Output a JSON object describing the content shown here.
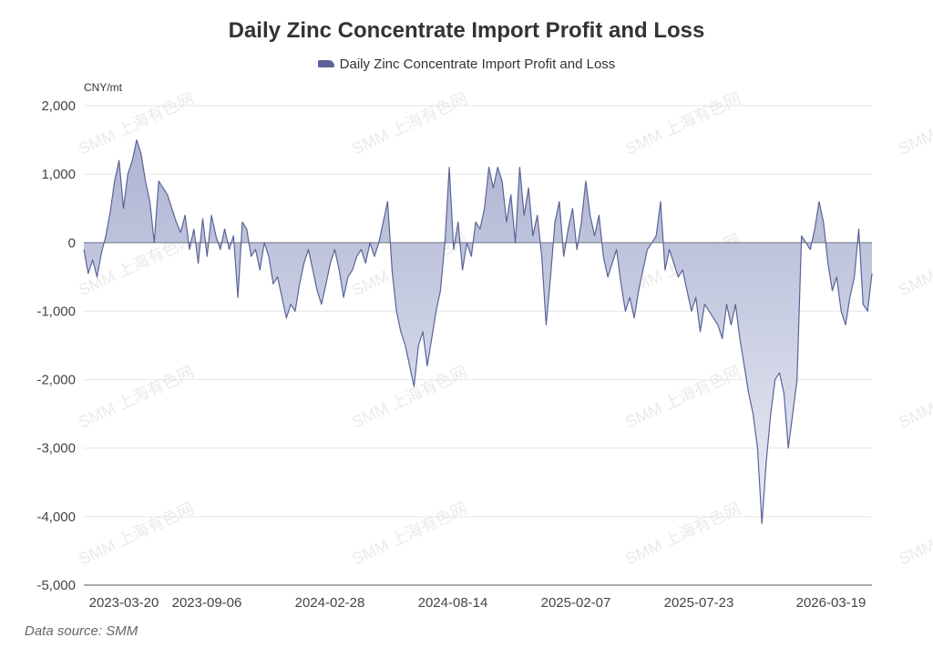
{
  "title": "Daily Zinc Concentrate Import Profit and Loss",
  "legend": {
    "label": "Daily Zinc Concentrate Import Profit and Loss"
  },
  "y_unit": "CNY/mt",
  "source": "Data source:  SMM",
  "watermark": "SMM 上海有色网",
  "colors": {
    "line": "#5a6398",
    "fill_top": "#a9b0d0",
    "fill_bottom": "#e9ebf4",
    "grid": "#e6e6e6",
    "zero": "#6f7580"
  },
  "chart_data": {
    "type": "area",
    "title": "Daily Zinc Concentrate Import Profit and Loss",
    "ylabel": "CNY/mt",
    "ylim": [
      -5000,
      2000
    ],
    "yticks": [
      2000,
      1000,
      0,
      -1000,
      -2000,
      -3000,
      -4000,
      -5000
    ],
    "ytick_labels": [
      "2,000",
      "1,000",
      "0",
      "-1,000",
      "-2,000",
      "-3,000",
      "-4,000",
      "-5,000"
    ],
    "xtick_labels": [
      "2023-03-20",
      "2023-09-06",
      "2024-02-28",
      "2024-08-14",
      "2025-02-07",
      "2025-07-23",
      "2026-03-19"
    ],
    "grid": true,
    "legend_position": "top-center",
    "series": [
      {
        "name": "Daily Zinc Concentrate Import Profit and Loss",
        "points": [
          [
            "2022-12-22",
            -100
          ],
          [
            "2022-12-29",
            -450
          ],
          [
            "2023-01-05",
            -250
          ],
          [
            "2023-01-12",
            -500
          ],
          [
            "2023-01-19",
            -150
          ],
          [
            "2023-01-26",
            100
          ],
          [
            "2023-02-02",
            450
          ],
          [
            "2023-02-09",
            900
          ],
          [
            "2023-02-16",
            1200
          ],
          [
            "2023-02-23",
            500
          ],
          [
            "2023-03-02",
            1000
          ],
          [
            "2023-03-09",
            1200
          ],
          [
            "2023-03-16",
            1500
          ],
          [
            "2023-03-23",
            1300
          ],
          [
            "2023-03-30",
            900
          ],
          [
            "2023-04-06",
            600
          ],
          [
            "2023-04-13",
            0
          ],
          [
            "2023-04-20",
            900
          ],
          [
            "2023-04-27",
            800
          ],
          [
            "2023-05-04",
            700
          ],
          [
            "2023-05-11",
            500
          ],
          [
            "2023-05-18",
            300
          ],
          [
            "2023-05-25",
            150
          ],
          [
            "2023-06-01",
            400
          ],
          [
            "2023-06-08",
            -100
          ],
          [
            "2023-06-15",
            200
          ],
          [
            "2023-06-22",
            -300
          ],
          [
            "2023-06-29",
            350
          ],
          [
            "2023-07-06",
            -200
          ],
          [
            "2023-07-13",
            400
          ],
          [
            "2023-07-20",
            100
          ],
          [
            "2023-07-27",
            -100
          ],
          [
            "2023-08-03",
            200
          ],
          [
            "2023-08-10",
            -100
          ],
          [
            "2023-08-17",
            100
          ],
          [
            "2023-08-24",
            -800
          ],
          [
            "2023-08-31",
            300
          ],
          [
            "2023-09-07",
            200
          ],
          [
            "2023-09-14",
            -200
          ],
          [
            "2023-09-21",
            -100
          ],
          [
            "2023-09-28",
            -400
          ],
          [
            "2023-10-05",
            0
          ],
          [
            "2023-10-12",
            -200
          ],
          [
            "2023-10-19",
            -600
          ],
          [
            "2023-10-26",
            -500
          ],
          [
            "2023-11-02",
            -800
          ],
          [
            "2023-11-09",
            -1100
          ],
          [
            "2023-11-16",
            -900
          ],
          [
            "2023-11-23",
            -1000
          ],
          [
            "2023-11-30",
            -600
          ],
          [
            "2023-12-07",
            -300
          ],
          [
            "2023-12-14",
            -100
          ],
          [
            "2023-12-21",
            -400
          ],
          [
            "2023-12-28",
            -700
          ],
          [
            "2024-01-04",
            -900
          ],
          [
            "2024-01-11",
            -600
          ],
          [
            "2024-01-18",
            -300
          ],
          [
            "2024-01-25",
            -100
          ],
          [
            "2024-02-01",
            -400
          ],
          [
            "2024-02-08",
            -800
          ],
          [
            "2024-02-15",
            -500
          ],
          [
            "2024-02-22",
            -400
          ],
          [
            "2024-02-29",
            -200
          ],
          [
            "2024-03-07",
            -100
          ],
          [
            "2024-03-14",
            -300
          ],
          [
            "2024-03-21",
            0
          ],
          [
            "2024-03-28",
            -200
          ],
          [
            "2024-04-04",
            0
          ],
          [
            "2024-04-11",
            300
          ],
          [
            "2024-04-18",
            600
          ],
          [
            "2024-04-25",
            -400
          ],
          [
            "2024-05-02",
            -1000
          ],
          [
            "2024-05-09",
            -1300
          ],
          [
            "2024-05-16",
            -1500
          ],
          [
            "2024-05-23",
            -1800
          ],
          [
            "2024-05-30",
            -2100
          ],
          [
            "2024-06-06",
            -1500
          ],
          [
            "2024-06-13",
            -1300
          ],
          [
            "2024-06-20",
            -1800
          ],
          [
            "2024-06-27",
            -1400
          ],
          [
            "2024-07-04",
            -1000
          ],
          [
            "2024-07-11",
            -700
          ],
          [
            "2024-07-18",
            0
          ],
          [
            "2024-07-25",
            1100
          ],
          [
            "2024-08-01",
            -100
          ],
          [
            "2024-08-08",
            300
          ],
          [
            "2024-08-15",
            -400
          ],
          [
            "2024-08-22",
            0
          ],
          [
            "2024-08-29",
            -200
          ],
          [
            "2024-09-05",
            300
          ],
          [
            "2024-09-12",
            200
          ],
          [
            "2024-09-19",
            500
          ],
          [
            "2024-09-26",
            1100
          ],
          [
            "2024-10-03",
            800
          ],
          [
            "2024-10-10",
            1100
          ],
          [
            "2024-10-17",
            900
          ],
          [
            "2024-10-24",
            300
          ],
          [
            "2024-10-31",
            700
          ],
          [
            "2024-11-07",
            0
          ],
          [
            "2024-11-14",
            1100
          ],
          [
            "2024-11-21",
            400
          ],
          [
            "2024-11-28",
            800
          ],
          [
            "2024-12-05",
            100
          ],
          [
            "2024-12-12",
            400
          ],
          [
            "2024-12-19",
            -200
          ],
          [
            "2024-12-26",
            -1200
          ],
          [
            "2025-01-02",
            -500
          ],
          [
            "2025-01-09",
            300
          ],
          [
            "2025-01-16",
            600
          ],
          [
            "2025-01-23",
            -200
          ],
          [
            "2025-01-30",
            200
          ],
          [
            "2025-02-06",
            500
          ],
          [
            "2025-02-13",
            -100
          ],
          [
            "2025-02-20",
            300
          ],
          [
            "2025-02-27",
            900
          ],
          [
            "2025-03-06",
            400
          ],
          [
            "2025-03-13",
            100
          ],
          [
            "2025-03-20",
            400
          ],
          [
            "2025-03-27",
            -200
          ],
          [
            "2025-04-03",
            -500
          ],
          [
            "2025-04-10",
            -300
          ],
          [
            "2025-04-17",
            -100
          ],
          [
            "2025-04-24",
            -600
          ],
          [
            "2025-05-01",
            -1000
          ],
          [
            "2025-05-08",
            -800
          ],
          [
            "2025-05-15",
            -1100
          ],
          [
            "2025-05-22",
            -700
          ],
          [
            "2025-05-29",
            -400
          ],
          [
            "2025-06-05",
            -100
          ],
          [
            "2025-06-12",
            0
          ],
          [
            "2025-06-19",
            100
          ],
          [
            "2025-06-26",
            600
          ],
          [
            "2025-07-03",
            -400
          ],
          [
            "2025-07-10",
            -100
          ],
          [
            "2025-07-17",
            -300
          ],
          [
            "2025-07-24",
            -500
          ],
          [
            "2025-07-31",
            -400
          ],
          [
            "2025-08-07",
            -700
          ],
          [
            "2025-08-14",
            -1000
          ],
          [
            "2025-08-21",
            -800
          ],
          [
            "2025-08-28",
            -1300
          ],
          [
            "2025-09-04",
            -900
          ],
          [
            "2025-09-11",
            -1000
          ],
          [
            "2025-09-18",
            -1100
          ],
          [
            "2025-09-25",
            -1200
          ],
          [
            "2025-10-02",
            -1400
          ],
          [
            "2025-10-09",
            -900
          ],
          [
            "2025-10-16",
            -1200
          ],
          [
            "2025-10-23",
            -900
          ],
          [
            "2025-10-30",
            -1400
          ],
          [
            "2025-11-06",
            -1800
          ],
          [
            "2025-11-13",
            -2200
          ],
          [
            "2025-11-20",
            -2500
          ],
          [
            "2025-11-27",
            -3000
          ],
          [
            "2025-12-04",
            -4100
          ],
          [
            "2025-12-11",
            -3200
          ],
          [
            "2025-12-18",
            -2500
          ],
          [
            "2025-12-25",
            -2000
          ],
          [
            "2026-01-01",
            -1900
          ],
          [
            "2026-01-08",
            -2200
          ],
          [
            "2026-01-15",
            -3000
          ],
          [
            "2026-01-22",
            -2500
          ],
          [
            "2026-01-29",
            -2000
          ],
          [
            "2026-02-05",
            100
          ],
          [
            "2026-02-12",
            0
          ],
          [
            "2026-02-19",
            -100
          ],
          [
            "2026-02-26",
            200
          ],
          [
            "2026-03-05",
            600
          ],
          [
            "2026-03-12",
            300
          ],
          [
            "2026-03-19",
            -300
          ],
          [
            "2026-03-26",
            -700
          ],
          [
            "2026-04-02",
            -500
          ],
          [
            "2026-04-09",
            -1000
          ],
          [
            "2026-04-16",
            -1200
          ],
          [
            "2026-04-23",
            -800
          ],
          [
            "2026-04-30",
            -500
          ],
          [
            "2026-05-07",
            200
          ],
          [
            "2026-05-14",
            -900
          ],
          [
            "2026-05-21",
            -1000
          ],
          [
            "2026-05-28",
            -450
          ]
        ]
      }
    ]
  }
}
